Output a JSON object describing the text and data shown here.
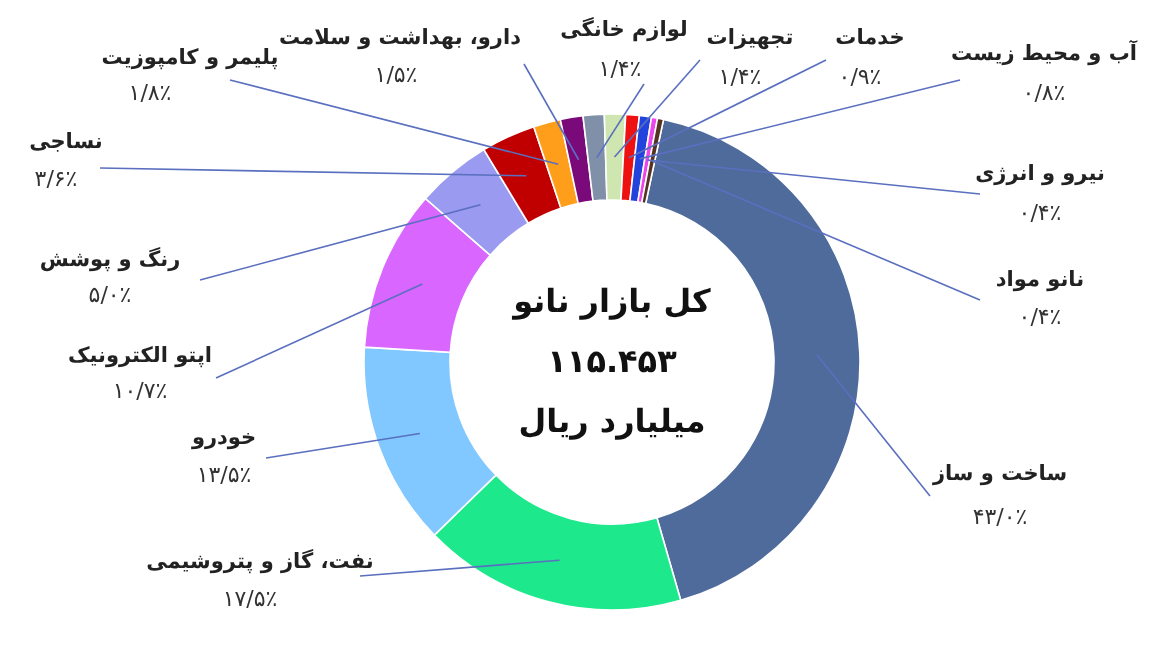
{
  "chart_data": {
    "type": "donut",
    "title": "کل بازار نانو",
    "subtitle": "۱۱۵.۴۵۳",
    "annotations": [
      "میلیارد ریال"
    ],
    "categories": [
      "ساخت و ساز",
      "نفت، گاز و پتروشیمی",
      "خودرو",
      "اپتو الکترونیک",
      "رنگ و پوشش",
      "نساجی",
      "پلیمر و کامپوزیت",
      "دارو، بهداشت و سلامت",
      "لوازم خانگی",
      "تجهیزات",
      "خدمات",
      "آب و محیط زیست",
      "نیرو و انرژی",
      "نانو مواد"
    ],
    "values": [
      43.0,
      17.5,
      13.5,
      10.7,
      5.0,
      3.6,
      1.8,
      1.5,
      1.4,
      1.4,
      0.9,
      0.8,
      0.4,
      0.4
    ],
    "value_labels": [
      "۴۳/۰٪",
      "۱۷/۵٪",
      "۱۳/۵٪",
      "۱۰/۷٪",
      "۵/۰٪",
      "۳/۶٪",
      "۱/۸٪",
      "۱/۵٪",
      "۱/۴٪",
      "۱/۴٪",
      "۰/۹٪",
      "۰/۸٪",
      "۰/۴٪",
      "۰/۴٪"
    ],
    "colors": [
      "#4f6b9c",
      "#1de88c",
      "#80c8ff",
      "#d966ff",
      "#9a9af0",
      "#c00000",
      "#ff9e1b",
      "#7a0a7a",
      "#8090a8",
      "#d0e6b0",
      "#ee1111",
      "#2244dd",
      "#ee44ee",
      "#553322"
    ]
  }
}
